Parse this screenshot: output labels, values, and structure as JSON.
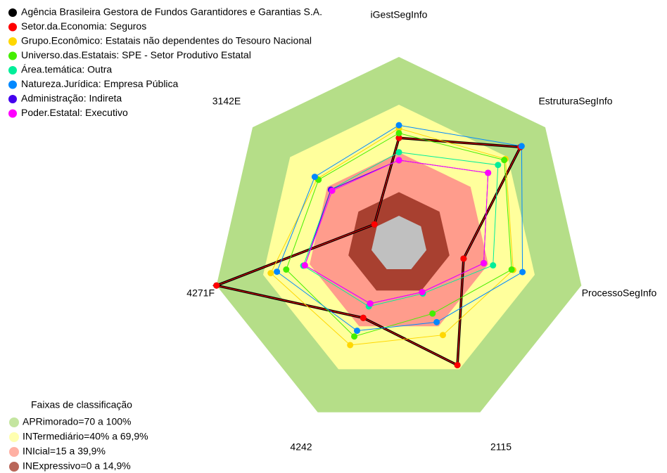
{
  "chart_data": {
    "type": "radar",
    "categories": [
      "iGestSegInfo",
      "EstruturaSegInfo",
      "ProcessoSegInfo",
      "2115",
      "4242",
      "4271F",
      "3142E"
    ],
    "ylim": [
      0,
      100
    ],
    "series": [
      {
        "name": "Agência Brasileira Gestora de Fundos Garantidores e Garantias S.A.",
        "color": "#000000",
        "values": [
          49,
          80,
          24,
          67,
          34,
          100,
          2
        ]
      },
      {
        "name": "Setor.da.Economia: Seguros",
        "color": "#ff0000",
        "values": [
          49,
          80,
          24,
          67,
          34,
          100,
          2
        ]
      },
      {
        "name": "Grupo.Econômico: Estatais não dependentes do Tesouro Nacional",
        "color": "#ffd700",
        "values": [
          55,
          68,
          56,
          46,
          53,
          65,
          48
        ]
      },
      {
        "name": "Universo.das.Estatais: SPE - Setor Produtivo Estatal",
        "color": "#44ee00",
        "values": [
          52,
          67,
          55,
          31,
          47,
          55,
          47
        ]
      },
      {
        "name": "Área.temática: Outra",
        "color": "#00ee99",
        "values": [
          40,
          62,
          43,
          17,
          26,
          44,
          37
        ]
      },
      {
        "name": "Natureza.Jurídica: Empresa Pública",
        "color": "#0088ff",
        "values": [
          57,
          81,
          62,
          37,
          43,
          61,
          50
        ]
      },
      {
        "name": "Administração: Indireta",
        "color": "#4400ee",
        "values": [
          35,
          54,
          37,
          16,
          24,
          43,
          37
        ]
      },
      {
        "name": "Poder.Estatal: Executivo",
        "color": "#ff00ff",
        "values": [
          35,
          54,
          37,
          16,
          24,
          43,
          36
        ]
      }
    ],
    "bands_title": "Faixas de classificação",
    "bands": [
      {
        "label": "APRimorado=70 a 100%",
        "from": 70,
        "to": 100,
        "color": "#b5de88"
      },
      {
        "label": "INTermediário=40% a 69,9%",
        "from": 40,
        "to": 69.9,
        "color": "#ffff9c"
      },
      {
        "label": "INIcial=15 a 39,9%",
        "from": 15,
        "to": 39.9,
        "color": "#ff9c8c"
      },
      {
        "label": "INExpressivo=0 a 14,9%",
        "from": 0,
        "to": 14.9,
        "color": "#a84030"
      }
    ]
  }
}
